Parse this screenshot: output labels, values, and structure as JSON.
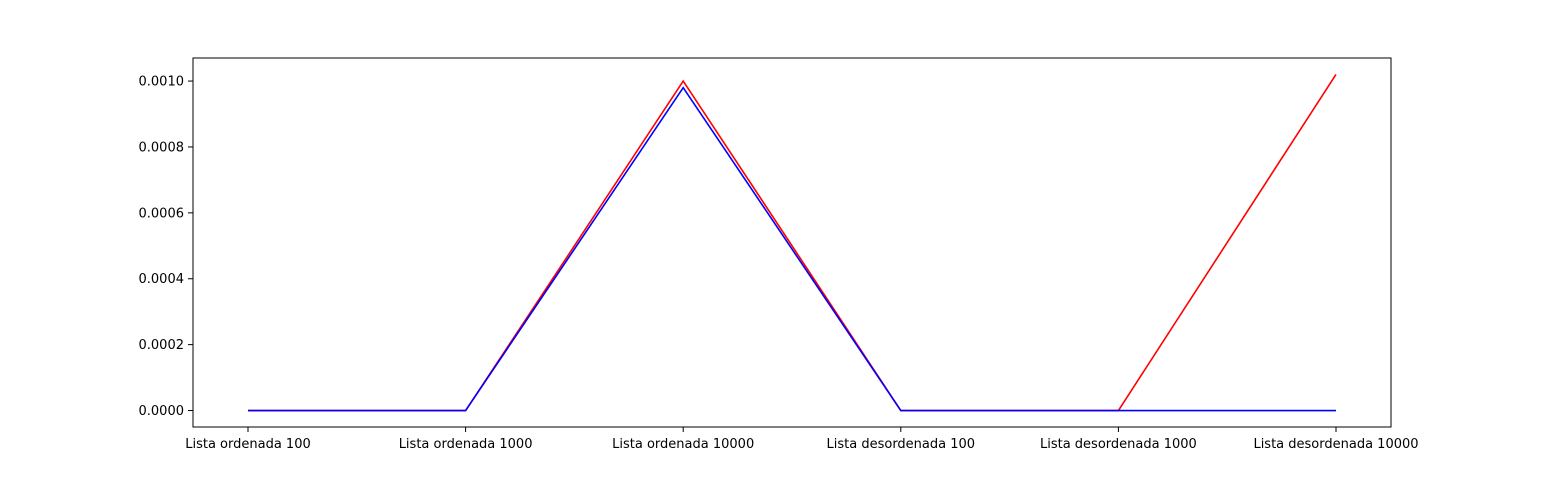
{
  "chart_data": {
    "type": "line",
    "title": "",
    "xlabel": "",
    "ylabel": "",
    "categories": [
      "Lista ordenada 100",
      "Lista ordenada 1000",
      "Lista ordenada 10000",
      "Lista desordenada 100",
      "Lista desordenada 1000",
      "Lista desordenada 10000"
    ],
    "ylim": [
      -5e-05,
      0.00107
    ],
    "yticks": [
      0.0,
      0.0002,
      0.0004,
      0.0006,
      0.0008,
      0.001
    ],
    "ytick_labels": [
      "0.0000",
      "0.0002",
      "0.0004",
      "0.0006",
      "0.0008",
      "0.0010"
    ],
    "grid": false,
    "series": [
      {
        "color": "#ff0000",
        "values": [
          0.0,
          0.0,
          0.001,
          0.0,
          0.0,
          0.00102
        ]
      },
      {
        "color": "#0000ff",
        "values": [
          0.0,
          0.0,
          0.00098,
          0.0,
          0.0,
          0.0
        ]
      }
    ]
  }
}
